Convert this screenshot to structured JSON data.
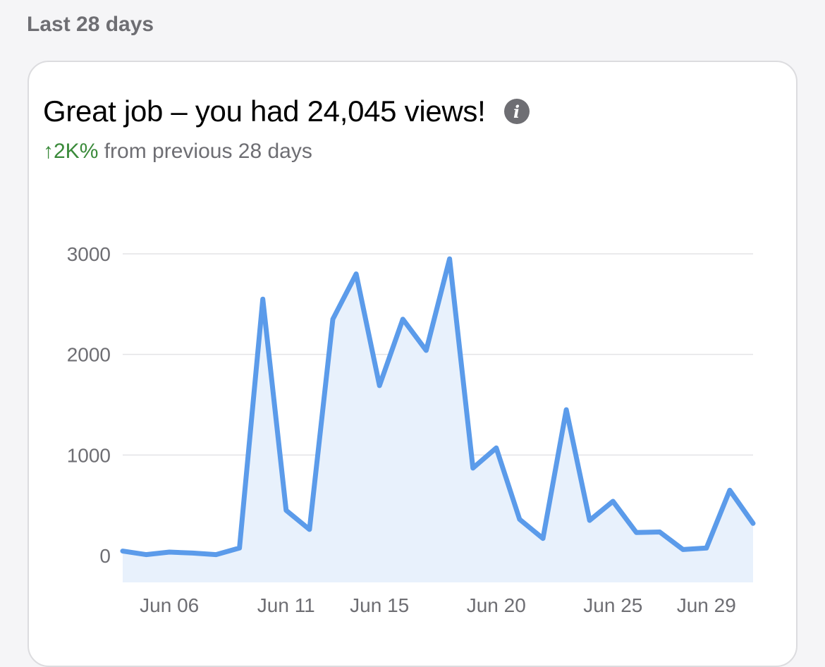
{
  "section_label": "Last 28 days",
  "headline": "Great job – you had 24,045 views!",
  "info_icon": "info-circle-icon",
  "change": {
    "arrow": "↑",
    "value": "2K%",
    "text": " from previous 28 days",
    "color": "#3a8a3a"
  },
  "chart_data": {
    "type": "area",
    "title": "",
    "xlabel": "",
    "ylabel": "",
    "ylim": [
      0,
      3000
    ],
    "yticks": [
      0,
      1000,
      2000,
      3000
    ],
    "x_tick_labels": [
      {
        "day": 6,
        "label": "Jun 06"
      },
      {
        "day": 11,
        "label": "Jun 11"
      },
      {
        "day": 15,
        "label": "Jun 15"
      },
      {
        "day": 20,
        "label": "Jun 20"
      },
      {
        "day": 25,
        "label": "Jun 25"
      },
      {
        "day": 29,
        "label": "Jun 29"
      }
    ],
    "x": [
      4,
      5,
      6,
      7,
      8,
      9,
      10,
      11,
      12,
      13,
      14,
      15,
      16,
      17,
      18,
      19,
      20,
      21,
      22,
      23,
      24,
      25,
      26,
      27,
      28,
      29,
      30,
      31
    ],
    "values": [
      45,
      10,
      35,
      25,
      10,
      75,
      2550,
      450,
      260,
      2350,
      2800,
      1690,
      2350,
      2040,
      2950,
      870,
      1070,
      360,
      170,
      1450,
      350,
      540,
      230,
      235,
      60,
      75,
      650,
      320
    ],
    "line_color": "#5b9bea",
    "fill_color": "#e8f1fc",
    "grid": true
  }
}
